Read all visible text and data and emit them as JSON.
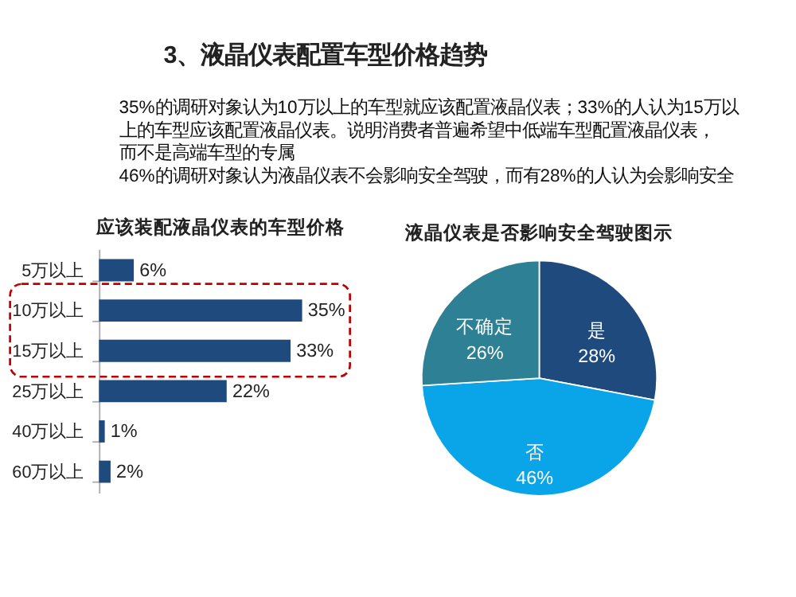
{
  "chart_data": [
    {
      "type": "other",
      "title": "3、液晶仪表配置车型价格趋势",
      "annotations": [
        "35%的调研对象认为10万以上的车型就应该配置液晶仪表；33%的人认为15万以上的车型应该配置液晶仪表。说明消费者普遍希望中低端车型配置液晶仪表，而不是高端车型的专属",
        "46%的调研对象认为液晶仪表不会影响安全驾驶，而有28%的人认为会影响安全"
      ]
    },
    {
      "type": "bar",
      "orientation": "horizontal",
      "title": "应该装配液晶仪表的车型价格",
      "categories": [
        "5万以上",
        "10万以上",
        "15万以上",
        "25万以上",
        "40万以上",
        "60万以上"
      ],
      "values": [
        6,
        35,
        33,
        22,
        1,
        2
      ],
      "color": "#1f4a7e",
      "value_labels": [
        "6%",
        "35%",
        "33%",
        "22%",
        "1%",
        "2%"
      ],
      "tick_labels": "y",
      "grid": false,
      "legend": false
    },
    {
      "type": "pie",
      "title": "液晶仪表是否影响安全驾驶图示",
      "categories": [
        "是",
        "否",
        "不确定"
      ],
      "values": [
        28,
        46,
        26
      ],
      "colors": [
        "#1f4a7e",
        "#0aa5e8",
        "#2e8095"
      ],
      "value_labels": [
        "28%",
        "46%",
        "26%"
      ],
      "data_labels": true,
      "legend": false
    }
  ]
}
